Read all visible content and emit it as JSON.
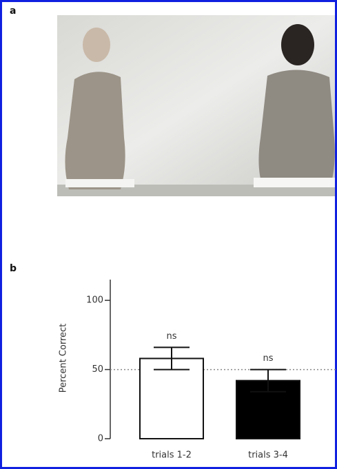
{
  "figure": {
    "panel_a_label": "a",
    "panel_b_label": "b"
  },
  "chart_data": {
    "type": "bar",
    "ylabel": "Percent Correct",
    "categories": [
      "trials 1-2",
      "trials 3-4"
    ],
    "values": [
      58,
      42
    ],
    "errors": [
      8,
      8
    ],
    "colors": [
      "#ffffff",
      "#000000"
    ],
    "annotations": [
      "ns",
      "ns"
    ],
    "reference_line": 50,
    "ylim": [
      0,
      115
    ],
    "yticks": [
      0,
      50,
      100
    ]
  }
}
